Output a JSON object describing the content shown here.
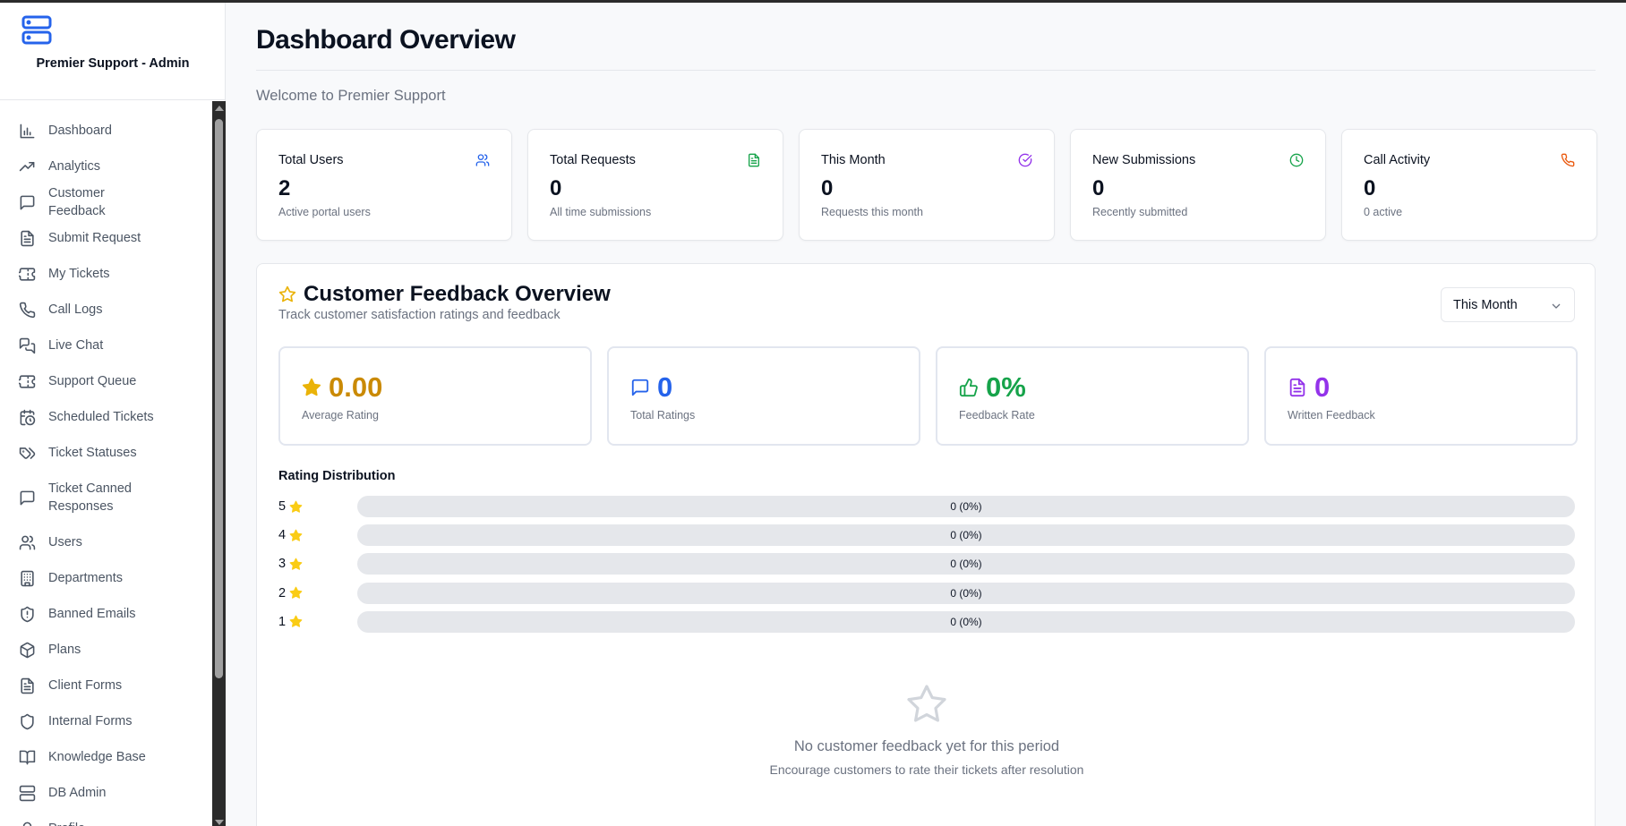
{
  "sidebar": {
    "brand": "Premier Support - Admin",
    "items": [
      {
        "label": "Dashboard",
        "icon": "bar-chart-icon"
      },
      {
        "label": "Analytics",
        "icon": "trending-up-icon"
      },
      {
        "label": "Customer Feedback",
        "icon": "message-square-icon"
      },
      {
        "label": "Submit Request",
        "icon": "file-text-icon"
      },
      {
        "label": "My Tickets",
        "icon": "ticket-icon"
      },
      {
        "label": "Call Logs",
        "icon": "phone-icon"
      },
      {
        "label": "Live Chat",
        "icon": "messages-icon"
      },
      {
        "label": "Support Queue",
        "icon": "ticket-icon"
      },
      {
        "label": "Scheduled Tickets",
        "icon": "calendar-clock-icon"
      },
      {
        "label": "Ticket Statuses",
        "icon": "tags-icon"
      },
      {
        "label": "Ticket Canned Responses",
        "icon": "message-square-icon"
      },
      {
        "label": "Users",
        "icon": "users-icon"
      },
      {
        "label": "Departments",
        "icon": "building-icon"
      },
      {
        "label": "Banned Emails",
        "icon": "shield-alert-icon"
      },
      {
        "label": "Plans",
        "icon": "package-icon"
      },
      {
        "label": "Client Forms",
        "icon": "file-text-icon"
      },
      {
        "label": "Internal Forms",
        "icon": "shield-icon"
      },
      {
        "label": "Knowledge Base",
        "icon": "book-open-icon"
      },
      {
        "label": "DB Admin",
        "icon": "server-icon"
      },
      {
        "label": "Profile",
        "icon": "user-icon"
      }
    ]
  },
  "header": {
    "title": "Dashboard Overview",
    "welcome": "Welcome to Premier Support"
  },
  "stats": [
    {
      "title": "Total Users",
      "value": "2",
      "sub": "Active portal users",
      "icon": "users-icon",
      "color": "#2563eb"
    },
    {
      "title": "Total Requests",
      "value": "0",
      "sub": "All time submissions",
      "icon": "file-text-icon",
      "color": "#16a34a"
    },
    {
      "title": "This Month",
      "value": "0",
      "sub": "Requests this month",
      "icon": "check-circle-icon",
      "color": "#9333ea"
    },
    {
      "title": "New Submissions",
      "value": "0",
      "sub": "Recently submitted",
      "icon": "clock-icon",
      "color": "#16a34a"
    },
    {
      "title": "Call Activity",
      "value": "0",
      "sub": "0 active",
      "icon": "phone-icon",
      "color": "#ea580c"
    }
  ],
  "feedback": {
    "title": "Customer Feedback Overview",
    "subtitle": "Track customer satisfaction ratings and feedback",
    "period": "This Month",
    "metrics": [
      {
        "value": "0.00",
        "label": "Average Rating",
        "icon": "star-icon",
        "color": "#ca8a04"
      },
      {
        "value": "0",
        "label": "Total Ratings",
        "icon": "message-square-icon",
        "color": "#2563eb"
      },
      {
        "value": "0%",
        "label": "Feedback Rate",
        "icon": "thumbs-up-icon",
        "color": "#16a34a"
      },
      {
        "value": "0",
        "label": "Written Feedback",
        "icon": "file-text-icon",
        "color": "#9333ea"
      }
    ],
    "distribution_title": "Rating Distribution",
    "distribution": [
      {
        "stars": "5",
        "text": "0 (0%)",
        "percent": 0
      },
      {
        "stars": "4",
        "text": "0 (0%)",
        "percent": 0
      },
      {
        "stars": "3",
        "text": "0 (0%)",
        "percent": 0
      },
      {
        "stars": "2",
        "text": "0 (0%)",
        "percent": 0
      },
      {
        "stars": "1",
        "text": "0 (0%)",
        "percent": 0
      }
    ],
    "empty_title": "No customer feedback yet for this period",
    "empty_sub": "Encourage customers to rate their tickets after resolution"
  }
}
